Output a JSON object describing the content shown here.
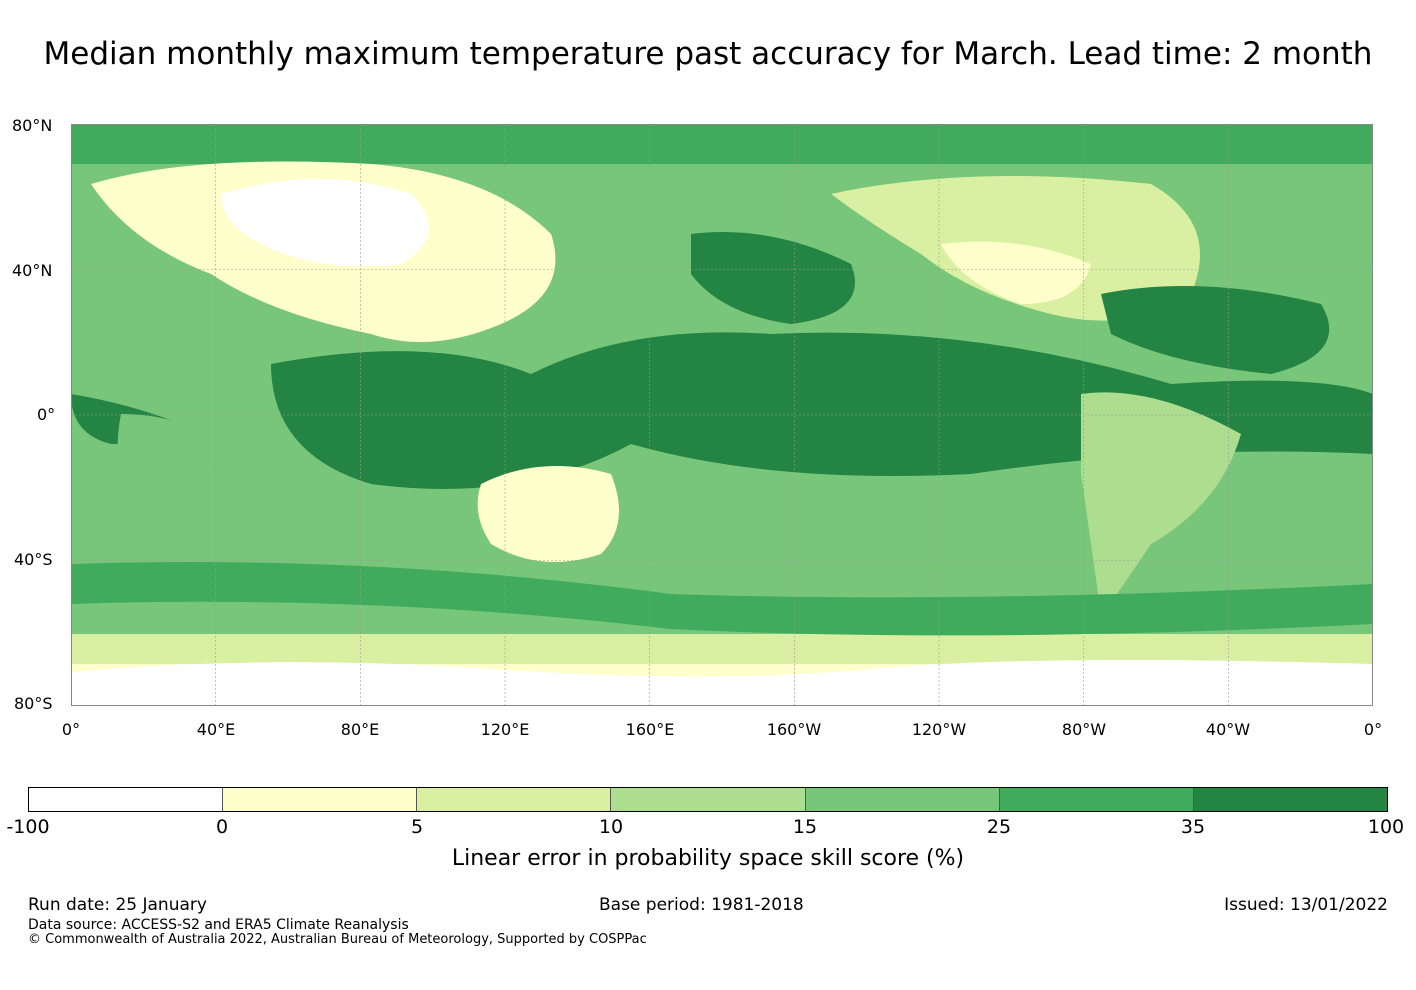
{
  "title": "Median monthly maximum temperature past accuracy for March. Lead time: 2 month",
  "map": {
    "lat_labels": [
      "80°N",
      "40°N",
      "0°",
      "40°S",
      "80°S"
    ],
    "lon_labels": [
      "0°",
      "40°E",
      "80°E",
      "120°E",
      "160°E",
      "160°W",
      "120°W",
      "80°W",
      "40°W",
      "0°"
    ]
  },
  "colorbar": {
    "label": "Linear error in probability space skill score (%)",
    "ticks": [
      "-100",
      "0",
      "5",
      "10",
      "15",
      "25",
      "35",
      "100"
    ],
    "colors": [
      "#ffffff",
      "#ffffcc",
      "#d9f0a3",
      "#addd8e",
      "#78c679",
      "#41ab5d",
      "#238443"
    ]
  },
  "footer": {
    "run_date": "Run date: 25 January",
    "base_period": "Base period: 1981-2018",
    "issued": "Issued: 13/01/2022",
    "data_source": "Data source: ACCESS-S2 and ERA5 Climate Reanalysis",
    "copyright": "© Commonwealth of Australia 2022, Australian Bureau of Meteorology, Supported by COSPPac"
  }
}
